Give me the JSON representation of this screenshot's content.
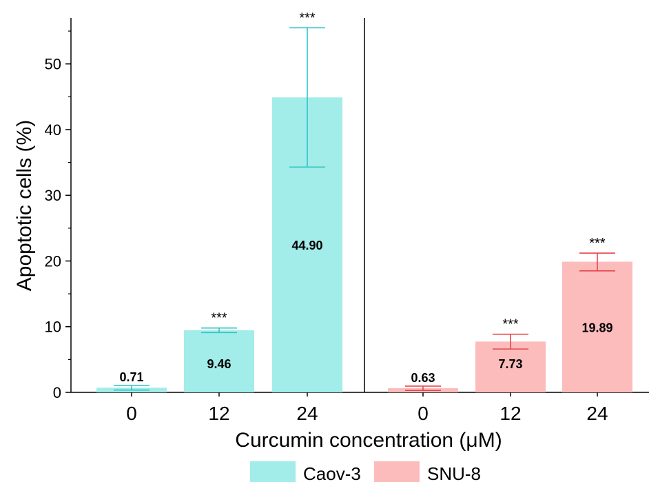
{
  "chart_data": {
    "type": "bar",
    "title": "",
    "xlabel": "Curcumin concentration (μM)",
    "ylabel": "Apoptotic cells (%)",
    "ylim": [
      0,
      57
    ],
    "yticks": [
      0,
      10,
      20,
      30,
      40,
      50
    ],
    "ytick_labels": [
      "0",
      "10",
      "20",
      "30",
      "40",
      "50"
    ],
    "grid": false,
    "legend_position": "bottom",
    "groups": [
      {
        "name": "Caov-3",
        "color": "#a2ece9",
        "error_color": "#2ec4c4",
        "categories": [
          "0",
          "12",
          "24"
        ],
        "values": [
          0.71,
          9.46,
          44.9
        ],
        "value_labels": [
          "0.71",
          "9.46",
          "44.90"
        ],
        "error_upper": [
          1.05,
          9.8,
          55.5
        ],
        "error_lower": [
          0.35,
          9.1,
          34.3
        ],
        "significance": [
          "",
          "***",
          "***"
        ]
      },
      {
        "name": "SNU-8",
        "color": "#fdbcbc",
        "error_color": "#e8454a",
        "categories": [
          "0",
          "12",
          "24"
        ],
        "values": [
          0.63,
          7.73,
          19.89
        ],
        "value_labels": [
          "0.63",
          "7.73",
          "19.89"
        ],
        "error_upper": [
          0.95,
          8.85,
          21.2
        ],
        "error_lower": [
          0.3,
          6.6,
          18.5
        ],
        "significance": [
          "",
          "***",
          "***"
        ]
      }
    ]
  }
}
